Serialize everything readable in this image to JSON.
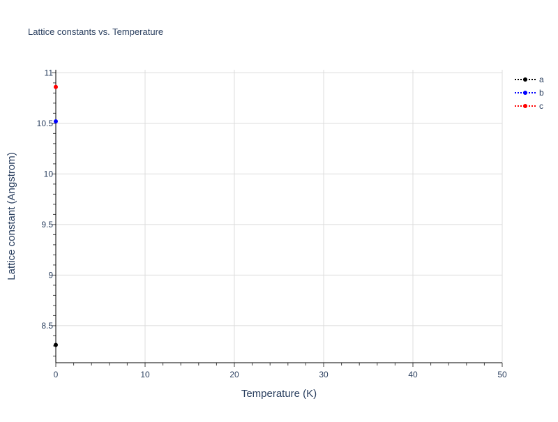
{
  "chart_data": {
    "type": "scatter",
    "mode": "lines+markers",
    "title": "Lattice constants vs. Temperature",
    "xlabel": "Temperature (K)",
    "ylabel": "Lattice constant (Angstrom)",
    "xlim": [
      0,
      50
    ],
    "ylim": [
      8.134,
      11.03
    ],
    "xticks": [
      0,
      10,
      20,
      30,
      40,
      50
    ],
    "yticks": [
      8.5,
      9,
      9.5,
      10,
      10.5,
      11
    ],
    "ytick_labels": [
      "8.5",
      "9",
      "9.5",
      "10",
      "10.5",
      "11"
    ],
    "xtick_labels": [
      "0",
      "10",
      "20",
      "30",
      "40",
      "50"
    ],
    "grid": true,
    "legend_position": "top-right",
    "series": [
      {
        "name": "a",
        "color": "#000000",
        "x": [
          0
        ],
        "y": [
          8.31
        ]
      },
      {
        "name": "b",
        "color": "#0000ff",
        "x": [
          0
        ],
        "y": [
          10.52
        ]
      },
      {
        "name": "c",
        "color": "#ff0000",
        "x": [
          0
        ],
        "y": [
          10.86
        ]
      }
    ]
  }
}
